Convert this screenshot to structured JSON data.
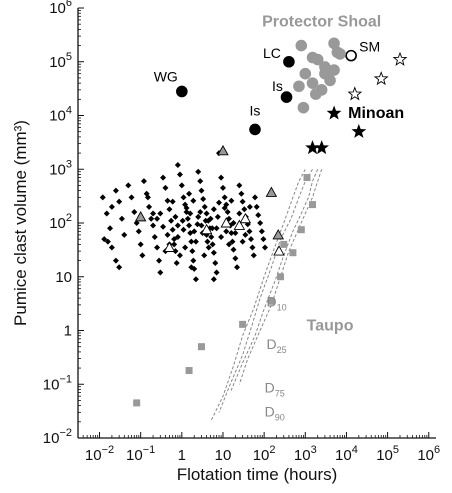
{
  "chart_data": {
    "type": "scatter",
    "xlabel": "Flotation time  (hours)",
    "ylabel": "Pumice clast volume  (mm³)",
    "xscale": "log",
    "yscale": "log",
    "xlim": [
      0.003,
      1500000
    ],
    "ylim": [
      0.01,
      1000000
    ],
    "x_ticks": [
      {
        "v": 0.01,
        "b": "10",
        "e": "−2"
      },
      {
        "v": 0.1,
        "b": "10",
        "e": "−1"
      },
      {
        "v": 1,
        "b": "1",
        "e": ""
      },
      {
        "v": 10,
        "b": "10",
        "e": ""
      },
      {
        "v": 100,
        "b": "10",
        "e": "2"
      },
      {
        "v": 1000,
        "b": "10",
        "e": "3"
      },
      {
        "v": 10000,
        "b": "10",
        "e": "4"
      },
      {
        "v": 100000,
        "b": "10",
        "e": "5"
      },
      {
        "v": 1000000,
        "b": "10",
        "e": "6"
      }
    ],
    "y_ticks": [
      {
        "v": 0.01,
        "b": "10",
        "e": "−2"
      },
      {
        "v": 0.1,
        "b": "10",
        "e": "−1"
      },
      {
        "v": 1,
        "b": "1",
        "e": ""
      },
      {
        "v": 10,
        "b": "10",
        "e": ""
      },
      {
        "v": 100,
        "b": "10",
        "e": "2"
      },
      {
        "v": 1000,
        "b": "10",
        "e": "3"
      },
      {
        "v": 10000,
        "b": "10",
        "e": "4"
      },
      {
        "v": 100000,
        "b": "10",
        "e": "5"
      },
      {
        "v": 1000000,
        "b": "10",
        "e": "6"
      }
    ],
    "colors": {
      "black": "#000000",
      "gray": "#999999",
      "axis": "#111111"
    },
    "group_labels": {
      "protector": {
        "text": "Protector Shoal",
        "color": "#999999"
      },
      "minoan": {
        "text": "Minoan",
        "color": "#000000"
      },
      "taupo": {
        "text": "Taupo",
        "color": "#999999"
      }
    },
    "point_labels": [
      {
        "text": "WG",
        "x": 1.0,
        "y": 28000
      },
      {
        "text": "LC",
        "x": 400,
        "y": 100000
      },
      {
        "text": "SM",
        "x": 13000,
        "y": 130000
      },
      {
        "text": "Is",
        "x": 400,
        "y": 22000
      },
      {
        "text": "Is",
        "x": 60,
        "y": 5500
      }
    ],
    "d_labels": [
      {
        "base": "D",
        "sub": "10",
        "x": 200,
        "y": 2.8
      },
      {
        "base": "D",
        "sub": "25",
        "x": 200,
        "y": 0.45
      },
      {
        "base": "D",
        "sub": "75",
        "x": 180,
        "y": 0.07
      },
      {
        "base": "D",
        "sub": "90",
        "x": 180,
        "y": 0.025
      }
    ],
    "series": [
      {
        "marker": "diamond",
        "color": "#000000",
        "points": [
          [
            0.012,
            300
          ],
          [
            0.015,
            150
          ],
          [
            0.018,
            80
          ],
          [
            0.02,
            200
          ],
          [
            0.025,
            400
          ],
          [
            0.03,
            250
          ],
          [
            0.035,
            120
          ],
          [
            0.04,
            60
          ],
          [
            0.013,
            50
          ],
          [
            0.016,
            45
          ],
          [
            0.02,
            35
          ],
          [
            0.025,
            20
          ],
          [
            0.03,
            15
          ],
          [
            0.05,
            500
          ],
          [
            0.06,
            300
          ],
          [
            0.07,
            160
          ],
          [
            0.08,
            100
          ],
          [
            0.09,
            70
          ],
          [
            0.1,
            40
          ],
          [
            0.11,
            25
          ],
          [
            0.12,
            600
          ],
          [
            0.14,
            350
          ],
          [
            0.16,
            200
          ],
          [
            0.18,
            120
          ],
          [
            0.2,
            90
          ],
          [
            0.22,
            55
          ],
          [
            0.25,
            35
          ],
          [
            0.28,
            20
          ],
          [
            0.3,
            12
          ],
          [
            0.35,
            700
          ],
          [
            0.4,
            450
          ],
          [
            0.45,
            260
          ],
          [
            0.5,
            180
          ],
          [
            0.55,
            110
          ],
          [
            0.6,
            75
          ],
          [
            0.65,
            50
          ],
          [
            0.7,
            30
          ],
          [
            0.75,
            18
          ],
          [
            0.8,
            1200
          ],
          [
            0.9,
            800
          ],
          [
            1.0,
            500
          ],
          [
            1.1,
            300
          ],
          [
            1.2,
            220
          ],
          [
            1.3,
            160
          ],
          [
            1.4,
            120
          ],
          [
            1.5,
            90
          ],
          [
            1.6,
            65
          ],
          [
            1.7,
            45
          ],
          [
            1.8,
            30
          ],
          [
            1.9,
            20
          ],
          [
            2.0,
            14
          ],
          [
            2.2,
            9
          ],
          [
            2.5,
            900
          ],
          [
            2.8,
            600
          ],
          [
            3.0,
            400
          ],
          [
            3.3,
            280
          ],
          [
            3.6,
            200
          ],
          [
            4.0,
            150
          ],
          [
            4.4,
            110
          ],
          [
            4.8,
            80
          ],
          [
            5.2,
            55
          ],
          [
            5.6,
            40
          ],
          [
            6.0,
            28
          ],
          [
            6.5,
            18
          ],
          [
            7.0,
            12
          ],
          [
            8.0,
            2000
          ],
          [
            9.0,
            700
          ],
          [
            10,
            450
          ],
          [
            11,
            300
          ],
          [
            12,
            220
          ],
          [
            13,
            160
          ],
          [
            14,
            120
          ],
          [
            15,
            90
          ],
          [
            16,
            65
          ],
          [
            17,
            45
          ],
          [
            18,
            32
          ],
          [
            20,
            22
          ],
          [
            22,
            15
          ],
          [
            25,
            500
          ],
          [
            28,
            350
          ],
          [
            30,
            250
          ],
          [
            33,
            180
          ],
          [
            36,
            130
          ],
          [
            40,
            95
          ],
          [
            44,
            70
          ],
          [
            48,
            50
          ],
          [
            52,
            35
          ],
          [
            56,
            25
          ],
          [
            60,
            300
          ],
          [
            66,
            200
          ],
          [
            72,
            140
          ],
          [
            80,
            100
          ],
          [
            88,
            70
          ],
          [
            96,
            50
          ],
          [
            105,
            35
          ],
          [
            0.5,
            40
          ],
          [
            0.8,
            55
          ],
          [
            1.2,
            35
          ],
          [
            2.0,
            70
          ],
          [
            3.0,
            90
          ],
          [
            4.0,
            60
          ],
          [
            0.3,
            150
          ],
          [
            0.6,
            250
          ],
          [
            1.5,
            350
          ],
          [
            2.5,
            130
          ],
          [
            6.0,
            180
          ],
          [
            8.0,
            240
          ],
          [
            12,
            70
          ],
          [
            18,
            100
          ],
          [
            25,
            150
          ],
          [
            35,
            60
          ],
          [
            45,
            200
          ],
          [
            0.9,
            25
          ],
          [
            1.7,
            15
          ],
          [
            3.5,
            25
          ],
          [
            6.0,
            9
          ],
          [
            0.2,
            150
          ],
          [
            0.35,
            85
          ],
          [
            0.7,
            130
          ],
          [
            1.1,
            75
          ],
          [
            2.2,
            45
          ],
          [
            4.5,
            35
          ],
          [
            9.0,
            55
          ],
          [
            14,
            40
          ],
          [
            20,
            65
          ],
          [
            30,
            45
          ],
          [
            0.4,
            30
          ],
          [
            0.8,
            90
          ],
          [
            1.3,
            190
          ],
          [
            1.9,
            260
          ],
          [
            2.8,
            160
          ],
          [
            3.8,
            110
          ],
          [
            5.5,
            80
          ],
          [
            7.5,
            130
          ],
          [
            11,
            190
          ],
          [
            16,
            260
          ],
          [
            0.15,
            300
          ],
          [
            0.25,
            120
          ],
          [
            0.45,
            60
          ],
          [
            0.65,
            40
          ],
          [
            1.05,
            110
          ],
          [
            1.6,
            150
          ],
          [
            2.4,
            95
          ],
          [
            3.2,
            65
          ],
          [
            4.2,
            45
          ],
          [
            5.0,
            120
          ],
          [
            7.0,
            80
          ]
        ]
      },
      {
        "marker": "triangle",
        "color": "#999999",
        "fill": "#999999",
        "points": [
          [
            0.1,
            130
          ],
          [
            10,
            2200
          ],
          [
            150,
            370
          ],
          [
            220,
            60
          ]
        ]
      },
      {
        "marker": "triangle",
        "color": "#000000",
        "fill": "#ffffff",
        "points": [
          [
            0.5,
            35
          ],
          [
            4,
            75
          ],
          [
            12,
            100
          ],
          [
            25,
            90
          ],
          [
            230,
            30
          ],
          [
            35,
            120
          ]
        ]
      },
      {
        "marker": "circle",
        "color": "#000000",
        "fill": "#000000",
        "points": [
          [
            1.0,
            28000
          ],
          [
            400,
            100000
          ],
          [
            350,
            22000
          ],
          [
            60,
            5500
          ]
        ]
      },
      {
        "marker": "circle",
        "color": "#000000",
        "fill": "#ffffff",
        "points": [
          [
            13000,
            130000
          ]
        ]
      },
      {
        "marker": "circle",
        "color": "#999999",
        "fill": "#999999",
        "points": [
          [
            800,
            200000
          ],
          [
            1500,
            120000
          ],
          [
            3000,
            80000
          ],
          [
            5000,
            220000
          ],
          [
            6000,
            150000
          ],
          [
            1000,
            60000
          ],
          [
            1500,
            40000
          ],
          [
            2500,
            30000
          ],
          [
            4000,
            45000
          ],
          [
            5000,
            70000
          ],
          [
            1800,
            25000
          ],
          [
            700,
            35000
          ],
          [
            900,
            14000
          ],
          [
            3000,
            60000
          ],
          [
            2000,
            110000
          ],
          [
            7000,
            140000
          ]
        ]
      },
      {
        "marker": "star",
        "color": "#000000",
        "fill": "#ffffff",
        "points": [
          [
            16000,
            25000
          ],
          [
            70000,
            48000
          ],
          [
            200000,
            110000
          ]
        ]
      },
      {
        "marker": "star",
        "color": "#000000",
        "fill": "#000000",
        "points": [
          [
            5000,
            11000
          ],
          [
            20000,
            5000
          ],
          [
            1500,
            2500
          ],
          [
            2500,
            2500
          ]
        ]
      },
      {
        "marker": "square",
        "color": "#999999",
        "fill": "#999999",
        "points": [
          [
            0.08,
            0.045
          ],
          [
            1.5,
            0.18
          ],
          [
            3,
            0.5
          ],
          [
            30,
            1.3
          ],
          [
            150,
            3.5
          ],
          [
            250,
            10
          ],
          [
            500,
            28
          ],
          [
            800,
            75
          ],
          [
            1500,
            220
          ],
          [
            1100,
            700
          ],
          [
            300,
            40
          ]
        ]
      }
    ],
    "d_curves": [
      [
        [
          2500,
          1000
        ],
        [
          2000,
          600
        ],
        [
          1500,
          300
        ],
        [
          1000,
          150
        ],
        [
          700,
          80
        ],
        [
          400,
          30
        ],
        [
          250,
          10
        ],
        [
          150,
          3
        ],
        [
          80,
          1
        ],
        [
          40,
          0.3
        ],
        [
          25,
          0.1
        ]
      ],
      [
        [
          2000,
          1000
        ],
        [
          1500,
          600
        ],
        [
          1200,
          300
        ],
        [
          800,
          150
        ],
        [
          500,
          70
        ],
        [
          300,
          25
        ],
        [
          180,
          8
        ],
        [
          100,
          2.5
        ],
        [
          60,
          0.8
        ],
        [
          30,
          0.25
        ],
        [
          15,
          0.07
        ]
      ],
      [
        [
          1500,
          1000
        ],
        [
          1000,
          600
        ],
        [
          700,
          300
        ],
        [
          450,
          120
        ],
        [
          250,
          50
        ],
        [
          150,
          15
        ],
        [
          80,
          4
        ],
        [
          50,
          1.2
        ],
        [
          30,
          0.35
        ],
        [
          15,
          0.1
        ],
        [
          8,
          0.03
        ]
      ],
      [
        [
          1000,
          1000
        ],
        [
          700,
          600
        ],
        [
          500,
          300
        ],
        [
          300,
          100
        ],
        [
          180,
          35
        ],
        [
          100,
          10
        ],
        [
          55,
          2.5
        ],
        [
          30,
          0.8
        ],
        [
          18,
          0.22
        ],
        [
          10,
          0.06
        ],
        [
          5,
          0.02
        ]
      ]
    ]
  }
}
